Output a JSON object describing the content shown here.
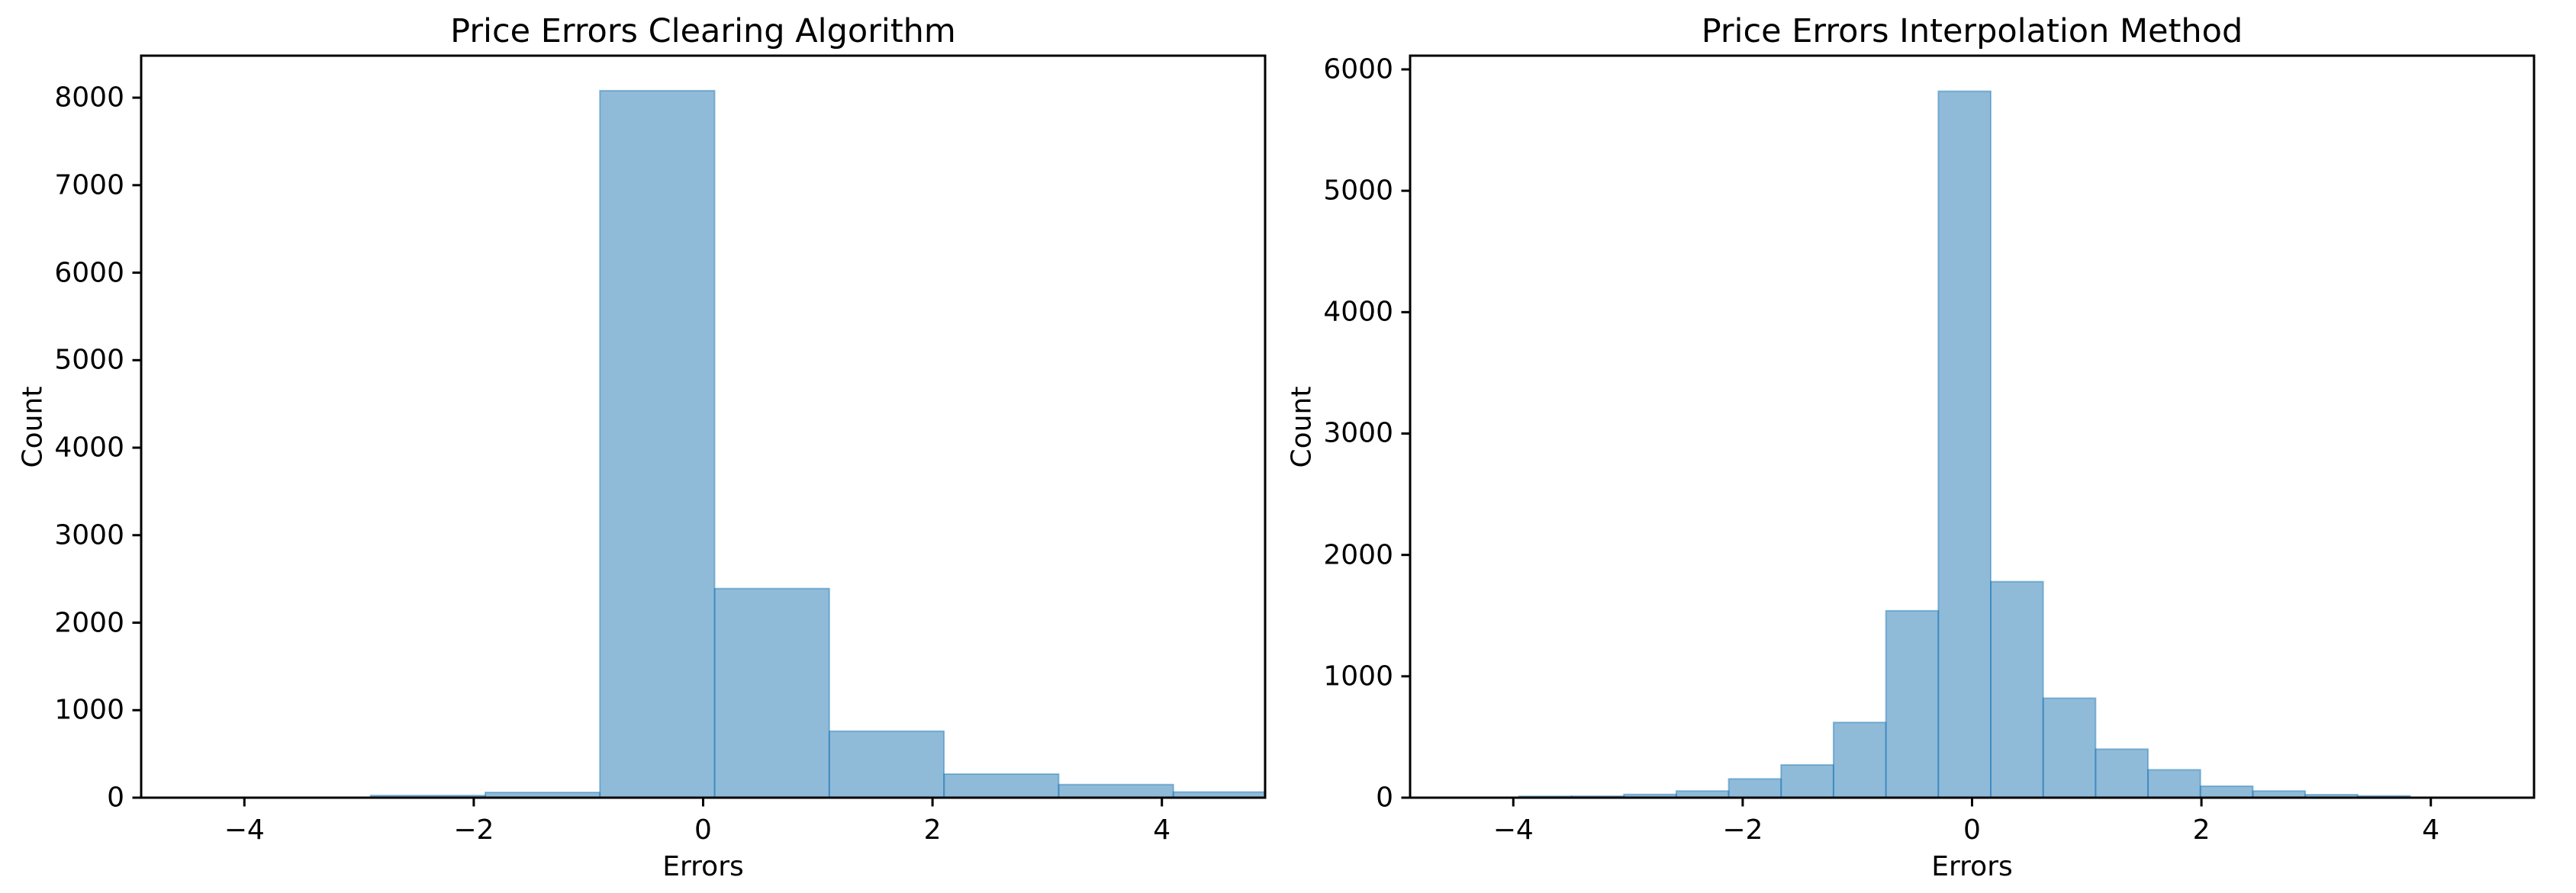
{
  "figure": {
    "background": "#ffffff",
    "text_color": "#000000"
  },
  "chart_data": [
    {
      "type": "bar",
      "subtype": "histogram",
      "title": "Price Errors Clearing Algorithm",
      "xlabel": "Errors",
      "ylabel": "Count",
      "grid": false,
      "legend": null,
      "bar_fill": "rgba(31,119,180,0.5)",
      "bar_edge": "rgba(31,119,180,0.45)",
      "xlim": [
        -4.9,
        4.9
      ],
      "ylim": [
        0,
        8480
      ],
      "bin_edges": [
        -2.9,
        -1.9,
        -0.9,
        0.1,
        1.1,
        2.1,
        3.1,
        4.1,
        5.1
      ],
      "counts": [
        25,
        60,
        8080,
        2390,
        760,
        270,
        150,
        65
      ],
      "xticks": [
        {
          "value": -4,
          "label": "−4"
        },
        {
          "value": -2,
          "label": "−2"
        },
        {
          "value": 0,
          "label": "0"
        },
        {
          "value": 2,
          "label": "2"
        },
        {
          "value": 4,
          "label": "4"
        }
      ],
      "yticks": [
        {
          "value": 0,
          "label": "0"
        },
        {
          "value": 1000,
          "label": "1000"
        },
        {
          "value": 2000,
          "label": "2000"
        },
        {
          "value": 3000,
          "label": "3000"
        },
        {
          "value": 4000,
          "label": "4000"
        },
        {
          "value": 5000,
          "label": "5000"
        },
        {
          "value": 6000,
          "label": "6000"
        },
        {
          "value": 7000,
          "label": "7000"
        },
        {
          "value": 8000,
          "label": "8000"
        }
      ]
    },
    {
      "type": "bar",
      "subtype": "histogram",
      "title": "Price Errors Interpolation Method",
      "xlabel": "Errors",
      "ylabel": "Count",
      "grid": false,
      "legend": null,
      "bar_fill": "rgba(31,119,180,0.5)",
      "bar_edge": "rgba(31,119,180,0.45)",
      "xlim": [
        -4.9,
        4.9
      ],
      "ylim": [
        0,
        6113
      ],
      "bin_edges": [
        -3.95,
        -3.493,
        -3.036,
        -2.579,
        -2.122,
        -1.665,
        -1.208,
        -0.751,
        -0.294,
        0.163,
        0.62,
        1.077,
        1.534,
        1.991,
        2.448,
        2.905,
        3.362,
        3.819
      ],
      "counts": [
        12,
        13,
        27,
        55,
        155,
        270,
        620,
        1540,
        5820,
        1780,
        820,
        400,
        230,
        95,
        55,
        25,
        15
      ],
      "xticks": [
        {
          "value": -4,
          "label": "−4"
        },
        {
          "value": -2,
          "label": "−2"
        },
        {
          "value": 0,
          "label": "0"
        },
        {
          "value": 2,
          "label": "2"
        },
        {
          "value": 4,
          "label": "4"
        }
      ],
      "yticks": [
        {
          "value": 0,
          "label": "0"
        },
        {
          "value": 1000,
          "label": "1000"
        },
        {
          "value": 2000,
          "label": "2000"
        },
        {
          "value": 3000,
          "label": "3000"
        },
        {
          "value": 4000,
          "label": "4000"
        },
        {
          "value": 5000,
          "label": "5000"
        },
        {
          "value": 6000,
          "label": "6000"
        }
      ]
    }
  ]
}
